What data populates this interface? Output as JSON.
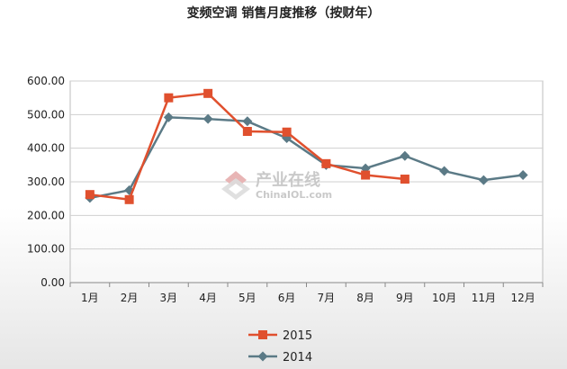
{
  "title": "变频空调 销售月度推移（按财年）",
  "watermark": {
    "name": "产业在线",
    "url": "ChinaIOL.com"
  },
  "colors": {
    "s2015": "#e0502e",
    "s2014": "#5b7a86",
    "grid": "#cfcfcf",
    "axis": "#888888"
  },
  "chart_data": {
    "type": "line",
    "title": "变频空调 销售月度推移（按财年）",
    "xlabel": "",
    "ylabel": "",
    "categories": [
      "1月",
      "2月",
      "3月",
      "4月",
      "5月",
      "6月",
      "7月",
      "8月",
      "9月",
      "10月",
      "11月",
      "12月"
    ],
    "yticks": [
      "0.00",
      "100.00",
      "200.00",
      "300.00",
      "400.00",
      "500.00",
      "600.00"
    ],
    "ylim": [
      0,
      600
    ],
    "grid": true,
    "legend": "bottom",
    "series": [
      {
        "name": "2015",
        "marker": "square",
        "values": [
          262,
          247,
          550,
          563,
          450,
          448,
          354,
          320,
          308,
          null,
          null,
          null
        ]
      },
      {
        "name": "2014",
        "marker": "diamond",
        "values": [
          252,
          275,
          492,
          487,
          480,
          430,
          350,
          340,
          377,
          332,
          305,
          320
        ]
      }
    ]
  }
}
